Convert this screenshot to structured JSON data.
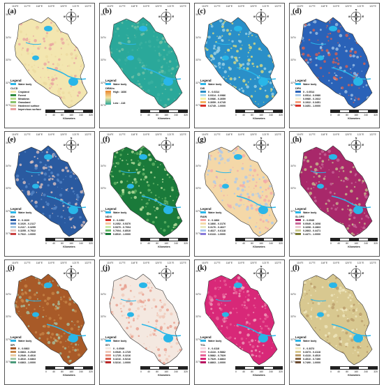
{
  "top_ticks": [
    "116°E",
    "117°E",
    "118°E",
    "119°E",
    "120°E",
    "121°E",
    "122°E"
  ],
  "side_ticks": [
    "35°N",
    "34°N",
    "33°N",
    "32°N",
    "31°N"
  ],
  "compass": {
    "n": "N",
    "s": "S",
    "e": "E",
    "w": "W"
  },
  "scale": {
    "numbers": [
      "0",
      "40",
      "80",
      "160",
      "240",
      "320"
    ],
    "unit": "Kilometers"
  },
  "water_color": "#29b6e8",
  "panels": [
    {
      "label": "(a)",
      "legend_title": "Legend",
      "water_label": "Water body",
      "sub_title": "CLCD",
      "type": "classes",
      "classes": [
        {
          "label": "Cropland",
          "color": "#f3e6b0"
        },
        {
          "label": "Forest",
          "color": "#2e8b3e"
        },
        {
          "label": "Meadows",
          "color": "#b9d98a"
        },
        {
          "label": "Grassland",
          "color": "#8ac26a"
        },
        {
          "label": "Hardened surface",
          "color": "#d9c6a5"
        },
        {
          "label": "Impervious surface",
          "color": "#e8a0a0"
        }
      ],
      "fill_colors": [
        "#f3e6b0",
        "#ecd9a0",
        "#e8a0a0"
      ]
    },
    {
      "label": "(b)",
      "legend_title": "Legend",
      "water_label": "Water body",
      "sub_title": "DEM/m",
      "type": "gradient",
      "grad_top": "High : 1836",
      "grad_bottom": "Low : -118",
      "gradient": [
        "#e8842a",
        "#f4e2a0",
        "#2aa89a"
      ],
      "fill_colors": [
        "#2aa89a",
        "#3db2a0",
        "#7cc4a8"
      ]
    },
    {
      "label": "(c)",
      "legend_title": "Legend",
      "water_label": "Water body",
      "sub_title": "DIS",
      "type": "classes",
      "classes": [
        {
          "label": "0 - 0.0314",
          "color": "#2a8fc8"
        },
        {
          "label": "0.0314 - 0.0986",
          "color": "#a8d8e8"
        },
        {
          "label": "0.0986 - 0.3059",
          "color": "#f4f0a8"
        },
        {
          "label": "0.3059 - 0.6745",
          "color": "#f4b060"
        },
        {
          "label": "0.6745 - 1.0000",
          "color": "#d83028"
        }
      ],
      "fill_colors": [
        "#2a8fc8",
        "#a8d8e8",
        "#e8e07a"
      ]
    },
    {
      "label": "(d)",
      "legend_title": "Legend",
      "water_label": "Water body",
      "sub_title": "DPN",
      "type": "classes",
      "classes": [
        {
          "label": "0 - 0.0514",
          "color": "#2a62b8"
        },
        {
          "label": "0.0514 - 0.0980",
          "color": "#a8c8e8"
        },
        {
          "label": "0.0980 - 0.1922",
          "color": "#f4f0d8"
        },
        {
          "label": "0.1922 - 0.3451",
          "color": "#f4a080"
        },
        {
          "label": "0.3451 - 1.0000",
          "color": "#d83028"
        }
      ],
      "fill_colors": [
        "#2a62b8",
        "#a8c8e8",
        "#e86048"
      ]
    },
    {
      "label": "(e)",
      "legend_title": "Legend",
      "water_label": "Water body",
      "sub_title": "ISH",
      "type": "classes",
      "classes": [
        {
          "label": "0 - 0.1020",
          "color": "#2a5aa0"
        },
        {
          "label": "0.1020 - 0.2117",
          "color": "#5a8ac8"
        },
        {
          "label": "0.2117 - 0.3255",
          "color": "#a8c8e0"
        },
        {
          "label": "0.3255 - 0.7922",
          "color": "#e8c8c0"
        },
        {
          "label": "0.7922 - 1.0000",
          "color": "#c84040"
        }
      ],
      "fill_colors": [
        "#2a5aa0",
        "#5a8ac8",
        "#e8c8c0"
      ]
    },
    {
      "label": "(f)",
      "legend_title": "Legend",
      "water_label": "Water body",
      "sub_title": "NDVI",
      "type": "classes",
      "classes": [
        {
          "label": "0 - 0.2352",
          "color": "#d83028"
        },
        {
          "label": "0.2352 - 0.5370",
          "color": "#f4c8a0"
        },
        {
          "label": "0.5370 - 0.7004",
          "color": "#c8e8a8"
        },
        {
          "label": "0.7004 - 0.8510",
          "color": "#6ab86a"
        },
        {
          "label": "0.8510 - 1.0000",
          "color": "#1a7a3a"
        }
      ],
      "fill_colors": [
        "#1a7a3a",
        "#6ab86a",
        "#c8e8a8"
      ]
    },
    {
      "label": "(g)",
      "legend_title": "Legend",
      "water_label": "Water body",
      "sub_title": "RAIN",
      "type": "classes",
      "classes": [
        {
          "label": "0 - 0.1866",
          "color": "#f4a8a8"
        },
        {
          "label": "0.1866 - 0.3176",
          "color": "#f4d8a8"
        },
        {
          "label": "0.3176 - 0.4627",
          "color": "#e8e8c0"
        },
        {
          "label": "0.4627 - 0.6118",
          "color": "#a8c8f0"
        },
        {
          "label": "0.6118 - 1.0000",
          "color": "#8878d8"
        }
      ],
      "fill_colors": [
        "#f4d8a8",
        "#f4a8a8",
        "#a8c8f0"
      ]
    },
    {
      "label": "(h)",
      "legend_title": "Legend",
      "water_label": "Water body",
      "sub_title": "SLOPE",
      "type": "classes",
      "classes": [
        {
          "label": "0 - 0.0549",
          "color": "#a8286a"
        },
        {
          "label": "0.0549 - 0.1608",
          "color": "#c86a9a"
        },
        {
          "label": "0.1608 - 0.2863",
          "color": "#e8c8d0"
        },
        {
          "label": "0.2863 - 0.4471",
          "color": "#c8c890"
        },
        {
          "label": "0.4471 - 1.0000",
          "color": "#7a7a30"
        }
      ],
      "fill_colors": [
        "#a8286a",
        "#c86a9a",
        "#c8c890"
      ]
    },
    {
      "label": "(i)",
      "legend_title": "Legend",
      "water_label": "Water body",
      "sub_title": "SPI",
      "type": "classes",
      "classes": [
        {
          "label": "0 - 0.0863",
          "color": "#a85a28"
        },
        {
          "label": "0.0863 - 0.2549",
          "color": "#c8884a"
        },
        {
          "label": "0.2549 - 0.4510",
          "color": "#e8c8a0"
        },
        {
          "label": "0.4510 - 0.6863",
          "color": "#a8c8a8"
        },
        {
          "label": "0.6863 - 1.0000",
          "color": "#4a9a7a"
        }
      ],
      "fill_colors": [
        "#a85a28",
        "#c8884a",
        "#a8c8a8"
      ]
    },
    {
      "label": "(j)",
      "legend_title": "Legend",
      "water_label": "Water body",
      "sub_title": "STI",
      "type": "classes",
      "classes": [
        {
          "label": "0 - 0.0549",
          "color": "#f4e8e0"
        },
        {
          "label": "0.0549 - 0.1725",
          "color": "#f0c8b8"
        },
        {
          "label": "0.1725 - 0.3216",
          "color": "#e89a88"
        },
        {
          "label": "0.3216 - 0.5216",
          "color": "#d86050"
        },
        {
          "label": "0.5216 - 1.0000",
          "color": "#b82828"
        }
      ],
      "fill_colors": [
        "#f4e8e0",
        "#f0c8b8",
        "#e89a88"
      ]
    },
    {
      "label": "(k)",
      "legend_title": "Legend",
      "water_label": "Water body",
      "sub_title": "TCL",
      "type": "classes",
      "classes": [
        {
          "label": "0 - 0.4118",
          "color": "#f4d8e0"
        },
        {
          "label": "0.4118 - 0.5882",
          "color": "#f0a8c0"
        },
        {
          "label": "0.5882 - 0.7529",
          "color": "#e86098"
        },
        {
          "label": "0.7529 - 0.8863",
          "color": "#d82878"
        },
        {
          "label": "0.8863 - 1.0000",
          "color": "#b81060"
        }
      ],
      "fill_colors": [
        "#d82878",
        "#e86098",
        "#f0a8c0"
      ]
    },
    {
      "label": "(l)",
      "legend_title": "Legend",
      "water_label": "Water body",
      "sub_title": "TWI",
      "type": "classes",
      "classes": [
        {
          "label": "0 - 0.3373",
          "color": "#f0e8c0"
        },
        {
          "label": "0.3373 - 0.4118",
          "color": "#d8c890"
        },
        {
          "label": "0.4118 - 0.4510",
          "color": "#b89a68"
        },
        {
          "label": "0.4510 - 0.7490",
          "color": "#8a6a48"
        },
        {
          "label": "0.7490 - 1.0000",
          "color": "#6a4a30"
        }
      ],
      "fill_colors": [
        "#d8c890",
        "#b89a68",
        "#f0e8c0"
      ]
    }
  ]
}
